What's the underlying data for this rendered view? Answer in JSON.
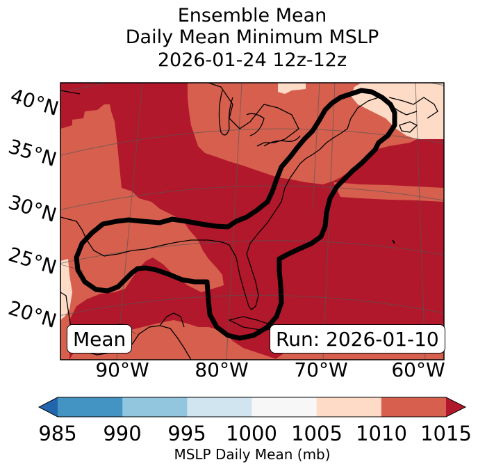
{
  "title": {
    "line1": "Ensemble Mean",
    "line2": "Daily Mean Minimum MSLP",
    "line3": "2026-01-24 12z-12z"
  },
  "map": {
    "lat_labels": [
      "40°N",
      "35°N",
      "30°N",
      "25°N",
      "20°N"
    ],
    "lon_labels": [
      "90°W",
      "80°W",
      "70°W",
      "60°W"
    ],
    "mean_box": "Mean",
    "run_box": "Run: 2026-01-10"
  },
  "colorbar": {
    "ticks": [
      "985",
      "990",
      "995",
      "1000",
      "1005",
      "1010",
      "1015"
    ],
    "label": "MSLP Daily Mean (mb)",
    "colors": [
      "#2166ac",
      "#4393c3",
      "#92c5de",
      "#d1e5f0",
      "#f7f7f7",
      "#fddbc7",
      "#d6604d",
      "#b2182b"
    ]
  },
  "chart_data": {
    "type": "heatmap",
    "title": "Ensemble Mean Daily Mean Minimum MSLP 2026-01-24 12z-12z",
    "variable": "MSLP Daily Mean",
    "units": "mb",
    "levels": [
      985,
      990,
      995,
      1000,
      1005,
      1010,
      1015
    ],
    "extend": "both",
    "lat_range": [
      17,
      42
    ],
    "lon_range": [
      -97,
      -58
    ],
    "dominant_values": {
      "gulf_and_southeast": "1010-1015",
      "atlantic_central": "1010-1015",
      "north_east_corner": "1005-1010",
      "west_margin": "1005-1010"
    },
    "annotation": "Mean",
    "run": "Run: 2026-01-10"
  }
}
